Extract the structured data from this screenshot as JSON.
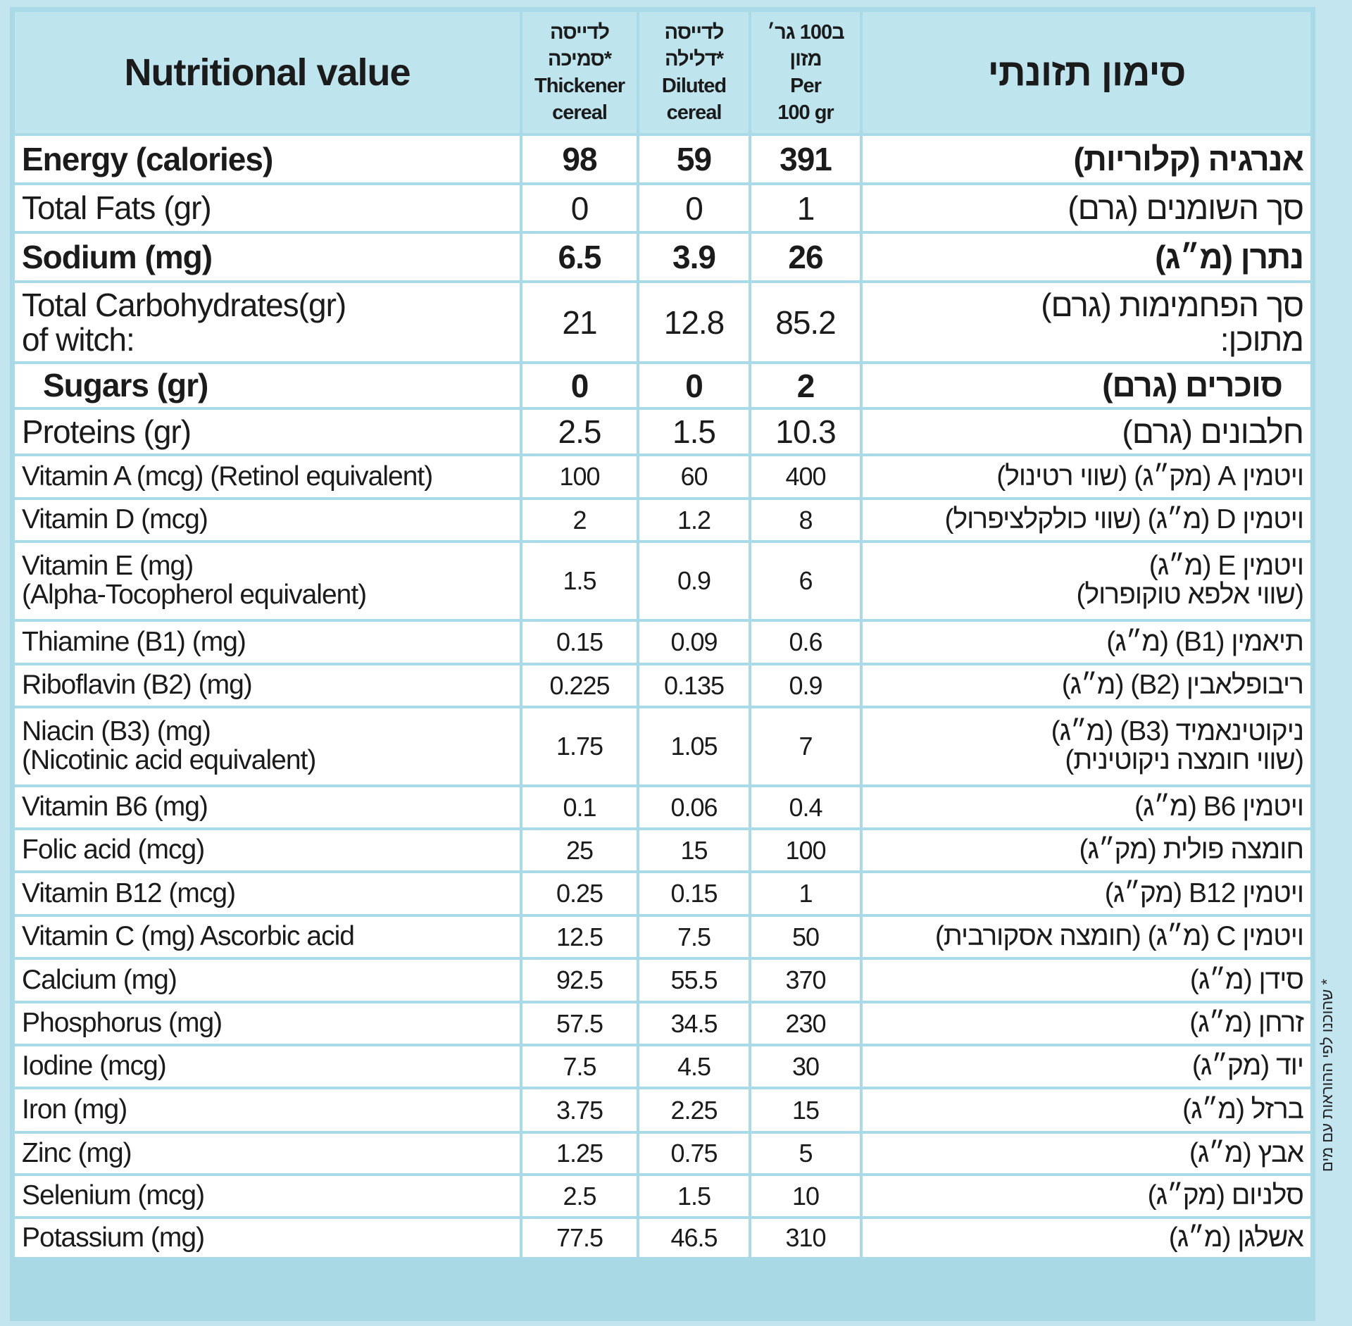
{
  "header": {
    "english": "Nutritional value",
    "thickener": "לדייסה\nסמיכה*\nThickener\ncereal",
    "diluted": "לדייסה\nדלילה*\nDiluted\ncereal",
    "per100": "ב100 גר׳\nמזון\nPer\n100 gr",
    "hebrew": "סימון תזונתי"
  },
  "rows": [
    [
      "Energy (calories)",
      "98",
      "59",
      "391",
      "אנרגיה (קלוריות)"
    ],
    [
      "Total Fats (gr)",
      "0",
      "0",
      "1",
      "סך השומנים (גרם)"
    ],
    [
      "Sodium (mg)",
      "6.5",
      "3.9",
      "26",
      "נתרן (מ״ג)"
    ],
    [
      "Total Carbohydrates(gr)\nof witch:",
      "21",
      "12.8",
      "85.2",
      "סך הפחמימות (גרם)\nמתוכן:"
    ],
    [
      "Sugars (gr)",
      "0",
      "0",
      "2",
      "סוכרים (גרם)"
    ],
    [
      "Proteins (gr)",
      "2.5",
      "1.5",
      "10.3",
      "חלבונים (גרם)"
    ],
    [
      "Vitamin A (mcg) (Retinol equivalent)",
      "100",
      "60",
      "400",
      "ויטמין A (מק״ג) (שווי רטינול)"
    ],
    [
      "Vitamin D (mcg)",
      "2",
      "1.2",
      "8",
      "ויטמין D (מ״ג) (שווי כולקלציפרול)"
    ],
    [
      "Vitamin E (mg)\n(Alpha-Tocopherol equivalent)",
      "1.5",
      "0.9",
      "6",
      "ויטמין E (מ״ג)\n(שווי אלפא טוקופרול)"
    ],
    [
      "Thiamine (B1) (mg)",
      "0.15",
      "0.09",
      "0.6",
      "תיאמין (B1) (מ״ג)"
    ],
    [
      "Riboflavin (B2) (mg)",
      "0.225",
      "0.135",
      "0.9",
      "ריבופלאבין (B2) (מ״ג)"
    ],
    [
      "Niacin (B3) (mg)\n(Nicotinic acid equivalent)",
      "1.75",
      "1.05",
      "7",
      "ניקוטינאמיד (B3) (מ״ג)\n(שווי חומצה ניקוטינית)"
    ],
    [
      "Vitamin B6 (mg)",
      "0.1",
      "0.06",
      "0.4",
      "ויטמין B6 (מ״ג)"
    ],
    [
      "Folic acid (mcg)",
      "25",
      "15",
      "100",
      "חומצה פולית (מק״ג)"
    ],
    [
      "Vitamin B12 (mcg)",
      "0.25",
      "0.15",
      "1",
      "ויטמין B12 (מק״ג)"
    ],
    [
      "Vitamin C (mg) Ascorbic acid",
      "12.5",
      "7.5",
      "50",
      "ויטמין C (מ״ג) (חומצה אסקורבית)"
    ],
    [
      "Calcium (mg)",
      "92.5",
      "55.5",
      "370",
      "סידן (מ״ג)"
    ],
    [
      "Phosphorus (mg)",
      "57.5",
      "34.5",
      "230",
      "זרחן (מ״ג)"
    ],
    [
      "Iodine (mcg)",
      "7.5",
      "4.5",
      "30",
      "יוד (מק״ג)"
    ],
    [
      "Iron (mg)",
      "3.75",
      "2.25",
      "15",
      "ברזל (מ״ג)"
    ],
    [
      "Zinc (mg)",
      "1.25",
      "0.75",
      "5",
      "אבץ (מ״ג)"
    ],
    [
      "Selenium (mcg)",
      "2.5",
      "1.5",
      "10",
      "סלניום (מק״ג)"
    ],
    [
      "Potassium (mg)",
      "77.5",
      "46.5",
      "310",
      "אשלגן (מ״ג)"
    ]
  ],
  "footnote": "* שהוכנו לפי ההוראות עם מים"
}
